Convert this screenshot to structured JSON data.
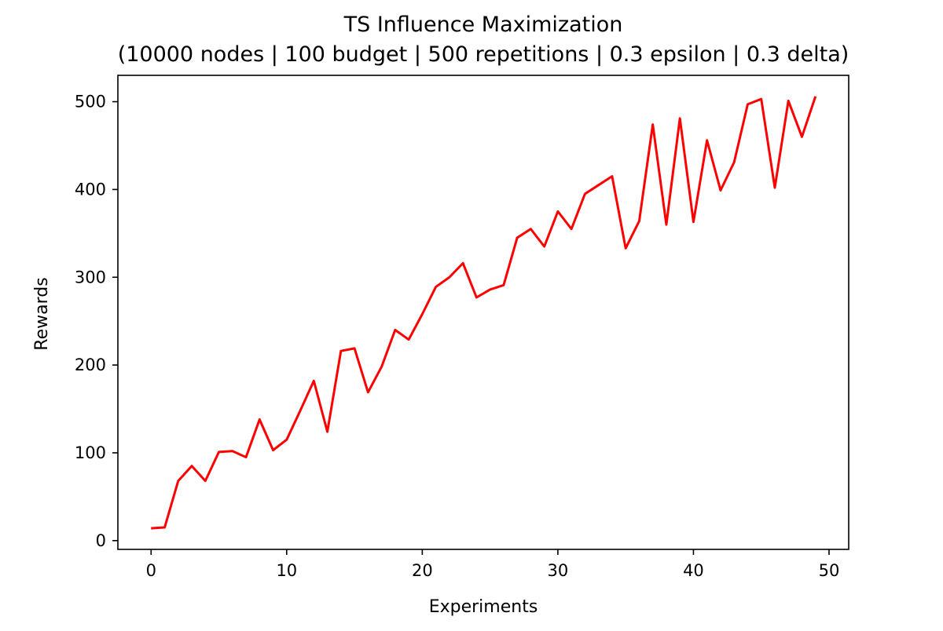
{
  "chart_data": {
    "type": "line",
    "title": "TS Influence Maximization",
    "subtitle": "(10000 nodes | 100 budget | 500 repetitions | 0.3 epsilon | 0.3 delta)",
    "xlabel": "Experiments",
    "ylabel": "Rewards",
    "xlim": [
      -2.45,
      51.45
    ],
    "ylim": [
      -10,
      530
    ],
    "xticks": [
      0,
      10,
      20,
      30,
      40,
      50
    ],
    "yticks": [
      0,
      100,
      200,
      300,
      400,
      500
    ],
    "grid": false,
    "series": [
      {
        "color": "#ff0000",
        "x": [
          0,
          1,
          2,
          3,
          4,
          5,
          6,
          7,
          8,
          9,
          10,
          11,
          12,
          13,
          14,
          15,
          16,
          17,
          18,
          19,
          20,
          21,
          22,
          23,
          24,
          25,
          26,
          27,
          28,
          29,
          30,
          31,
          32,
          33,
          34,
          35,
          36,
          37,
          38,
          39,
          40,
          41,
          42,
          43,
          44,
          45,
          46,
          47,
          48,
          49
        ],
        "values": [
          14,
          15,
          68,
          85,
          68,
          101,
          102,
          95,
          138,
          103,
          115,
          148,
          182,
          124,
          216,
          219,
          169,
          198,
          240,
          229,
          258,
          289,
          300,
          316,
          277,
          286,
          291,
          345,
          355,
          335,
          375,
          355,
          395,
          405,
          415,
          333,
          364,
          474,
          360,
          481,
          363,
          456,
          399,
          431,
          497,
          503,
          402,
          501,
          460,
          506
        ]
      }
    ]
  }
}
